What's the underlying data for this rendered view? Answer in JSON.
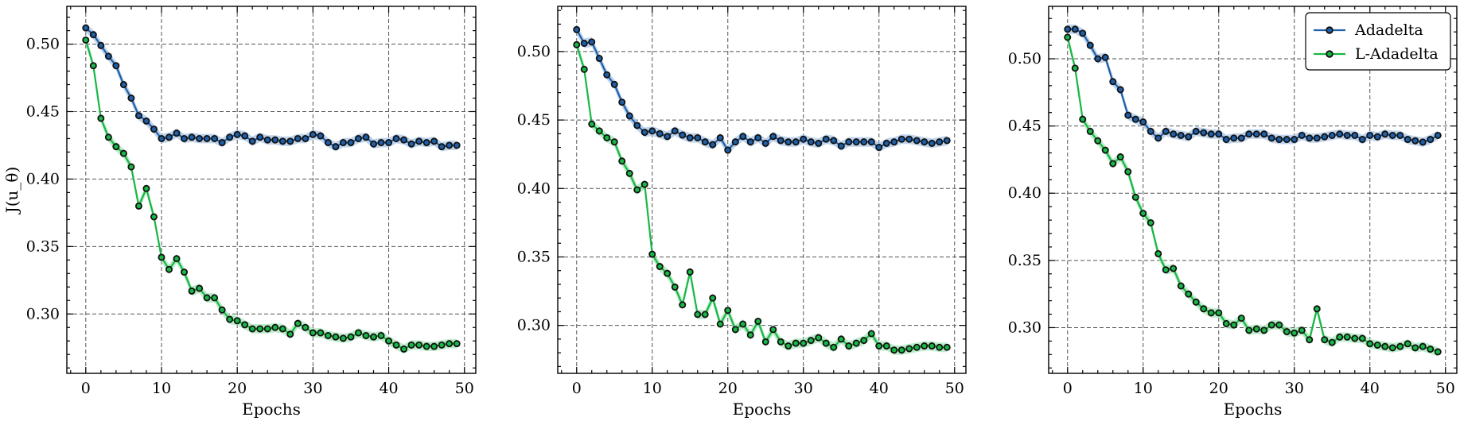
{
  "chart_data": [
    {
      "type": "line",
      "xlabel": "Epochs",
      "ylabel": "J(u_θ)",
      "xlim": [
        -2.5,
        51.5
      ],
      "ylim": [
        0.256,
        0.528
      ],
      "xticks": [
        0,
        10,
        20,
        30,
        40,
        50
      ],
      "yticks": [
        0.3,
        0.35,
        0.4,
        0.45,
        0.5
      ],
      "ytick_labels": [
        "0.30",
        "0.35",
        "0.40",
        "0.45",
        "0.50"
      ],
      "grid": true,
      "legend": null,
      "series": [
        {
          "name": "Adadelta",
          "color": "#1f5fa8",
          "band_color": "#a9c6e6",
          "x": [
            0,
            1,
            2,
            3,
            4,
            5,
            6,
            7,
            8,
            9,
            10,
            11,
            12,
            13,
            14,
            15,
            16,
            17,
            18,
            19,
            20,
            21,
            22,
            23,
            24,
            25,
            26,
            27,
            28,
            29,
            30,
            31,
            32,
            33,
            34,
            35,
            36,
            37,
            38,
            39,
            40,
            41,
            42,
            43,
            44,
            45,
            46,
            47,
            48,
            49
          ],
          "y": [
            0.512,
            0.507,
            0.499,
            0.491,
            0.484,
            0.47,
            0.46,
            0.447,
            0.443,
            0.437,
            0.43,
            0.431,
            0.434,
            0.43,
            0.431,
            0.43,
            0.43,
            0.43,
            0.427,
            0.431,
            0.433,
            0.432,
            0.428,
            0.431,
            0.429,
            0.429,
            0.428,
            0.428,
            0.43,
            0.43,
            0.433,
            0.432,
            0.427,
            0.424,
            0.427,
            0.427,
            0.43,
            0.431,
            0.426,
            0.427,
            0.427,
            0.43,
            0.429,
            0.426,
            0.428,
            0.427,
            0.428,
            0.424,
            0.425,
            0.425
          ]
        },
        {
          "name": "L-Adadelta",
          "color": "#17b845",
          "band_color": "#a6e6b8",
          "x": [
            0,
            1,
            2,
            3,
            4,
            5,
            6,
            7,
            8,
            9,
            10,
            11,
            12,
            13,
            14,
            15,
            16,
            17,
            18,
            19,
            20,
            21,
            22,
            23,
            24,
            25,
            26,
            27,
            28,
            29,
            30,
            31,
            32,
            33,
            34,
            35,
            36,
            37,
            38,
            39,
            40,
            41,
            42,
            43,
            44,
            45,
            46,
            47,
            48,
            49
          ],
          "y": [
            0.503,
            0.484,
            0.445,
            0.431,
            0.424,
            0.419,
            0.409,
            0.38,
            0.393,
            0.372,
            0.342,
            0.333,
            0.341,
            0.331,
            0.317,
            0.319,
            0.312,
            0.312,
            0.303,
            0.296,
            0.295,
            0.292,
            0.289,
            0.289,
            0.289,
            0.29,
            0.289,
            0.285,
            0.293,
            0.29,
            0.286,
            0.286,
            0.284,
            0.283,
            0.282,
            0.283,
            0.286,
            0.284,
            0.283,
            0.284,
            0.28,
            0.277,
            0.274,
            0.277,
            0.277,
            0.276,
            0.276,
            0.277,
            0.278,
            0.278
          ]
        }
      ]
    },
    {
      "type": "line",
      "xlabel": "Epochs",
      "ylabel": "",
      "xlim": [
        -2.5,
        51.5
      ],
      "ylim": [
        0.265,
        0.533
      ],
      "xticks": [
        0,
        10,
        20,
        30,
        40,
        50
      ],
      "yticks": [
        0.3,
        0.35,
        0.4,
        0.45,
        0.5
      ],
      "ytick_labels": [
        "0.30",
        "0.35",
        "0.40",
        "0.45",
        "0.50"
      ],
      "grid": true,
      "legend": null,
      "series": [
        {
          "name": "Adadelta",
          "color": "#1f5fa8",
          "band_color": "#a9c6e6",
          "x": [
            0,
            1,
            2,
            3,
            4,
            5,
            6,
            7,
            8,
            9,
            10,
            11,
            12,
            13,
            14,
            15,
            16,
            17,
            18,
            19,
            20,
            21,
            22,
            23,
            24,
            25,
            26,
            27,
            28,
            29,
            30,
            31,
            32,
            33,
            34,
            35,
            36,
            37,
            38,
            39,
            40,
            41,
            42,
            43,
            44,
            45,
            46,
            47,
            48,
            49
          ],
          "y": [
            0.516,
            0.506,
            0.507,
            0.495,
            0.483,
            0.476,
            0.463,
            0.453,
            0.446,
            0.441,
            0.442,
            0.44,
            0.438,
            0.442,
            0.439,
            0.437,
            0.437,
            0.434,
            0.432,
            0.437,
            0.428,
            0.434,
            0.438,
            0.434,
            0.437,
            0.433,
            0.438,
            0.435,
            0.434,
            0.434,
            0.436,
            0.434,
            0.433,
            0.436,
            0.435,
            0.431,
            0.434,
            0.434,
            0.434,
            0.434,
            0.43,
            0.433,
            0.434,
            0.436,
            0.436,
            0.435,
            0.434,
            0.433,
            0.434,
            0.435
          ]
        },
        {
          "name": "L-Adadelta",
          "color": "#17b845",
          "band_color": "#a6e6b8",
          "x": [
            0,
            1,
            2,
            3,
            4,
            5,
            6,
            7,
            8,
            9,
            10,
            11,
            12,
            13,
            14,
            15,
            16,
            17,
            18,
            19,
            20,
            21,
            22,
            23,
            24,
            25,
            26,
            27,
            28,
            29,
            30,
            31,
            32,
            33,
            34,
            35,
            36,
            37,
            38,
            39,
            40,
            41,
            42,
            43,
            44,
            45,
            46,
            47,
            48,
            49
          ],
          "y": [
            0.505,
            0.487,
            0.447,
            0.442,
            0.437,
            0.434,
            0.42,
            0.411,
            0.399,
            0.403,
            0.352,
            0.343,
            0.338,
            0.328,
            0.315,
            0.339,
            0.308,
            0.308,
            0.32,
            0.301,
            0.311,
            0.297,
            0.301,
            0.293,
            0.303,
            0.288,
            0.297,
            0.288,
            0.285,
            0.287,
            0.287,
            0.289,
            0.291,
            0.287,
            0.284,
            0.29,
            0.285,
            0.287,
            0.289,
            0.294,
            0.285,
            0.285,
            0.282,
            0.282,
            0.283,
            0.284,
            0.285,
            0.285,
            0.284,
            0.284
          ]
        }
      ]
    },
    {
      "type": "line",
      "xlabel": "Epochs",
      "ylabel": "",
      "xlim": [
        -2.5,
        51.5
      ],
      "ylim": [
        0.266,
        0.539
      ],
      "xticks": [
        0,
        10,
        20,
        30,
        40,
        50
      ],
      "yticks": [
        0.3,
        0.35,
        0.4,
        0.45,
        0.5
      ],
      "ytick_labels": [
        "0.30",
        "0.35",
        "0.40",
        "0.45",
        "0.50"
      ],
      "grid": true,
      "legend": "top-right",
      "series": [
        {
          "name": "Adadelta",
          "color": "#1f5fa8",
          "band_color": "#a9c6e6",
          "x": [
            0,
            1,
            2,
            3,
            4,
            5,
            6,
            7,
            8,
            9,
            10,
            11,
            12,
            13,
            14,
            15,
            16,
            17,
            18,
            19,
            20,
            21,
            22,
            23,
            24,
            25,
            26,
            27,
            28,
            29,
            30,
            31,
            32,
            33,
            34,
            35,
            36,
            37,
            38,
            39,
            40,
            41,
            42,
            43,
            44,
            45,
            46,
            47,
            48,
            49
          ],
          "y": [
            0.522,
            0.522,
            0.519,
            0.51,
            0.5,
            0.501,
            0.483,
            0.477,
            0.458,
            0.455,
            0.453,
            0.446,
            0.441,
            0.446,
            0.444,
            0.443,
            0.442,
            0.446,
            0.445,
            0.444,
            0.444,
            0.44,
            0.441,
            0.441,
            0.444,
            0.444,
            0.444,
            0.441,
            0.44,
            0.44,
            0.44,
            0.443,
            0.441,
            0.441,
            0.442,
            0.443,
            0.444,
            0.443,
            0.443,
            0.44,
            0.443,
            0.442,
            0.444,
            0.443,
            0.443,
            0.44,
            0.439,
            0.438,
            0.44,
            0.443
          ]
        },
        {
          "name": "L-Adadelta",
          "color": "#17b845",
          "band_color": "#a6e6b8",
          "x": [
            0,
            1,
            2,
            3,
            4,
            5,
            6,
            7,
            8,
            9,
            10,
            11,
            12,
            13,
            14,
            15,
            16,
            17,
            18,
            19,
            20,
            21,
            22,
            23,
            24,
            25,
            26,
            27,
            28,
            29,
            30,
            31,
            32,
            33,
            34,
            35,
            36,
            37,
            38,
            39,
            40,
            41,
            42,
            43,
            44,
            45,
            46,
            47,
            48,
            49
          ],
          "y": [
            0.516,
            0.493,
            0.455,
            0.446,
            0.439,
            0.432,
            0.422,
            0.427,
            0.416,
            0.397,
            0.385,
            0.378,
            0.355,
            0.343,
            0.344,
            0.331,
            0.325,
            0.319,
            0.314,
            0.311,
            0.311,
            0.303,
            0.302,
            0.307,
            0.298,
            0.299,
            0.298,
            0.302,
            0.302,
            0.297,
            0.296,
            0.298,
            0.291,
            0.314,
            0.291,
            0.289,
            0.293,
            0.293,
            0.292,
            0.292,
            0.288,
            0.287,
            0.286,
            0.285,
            0.286,
            0.288,
            0.285,
            0.286,
            0.284,
            0.282
          ]
        }
      ]
    }
  ]
}
